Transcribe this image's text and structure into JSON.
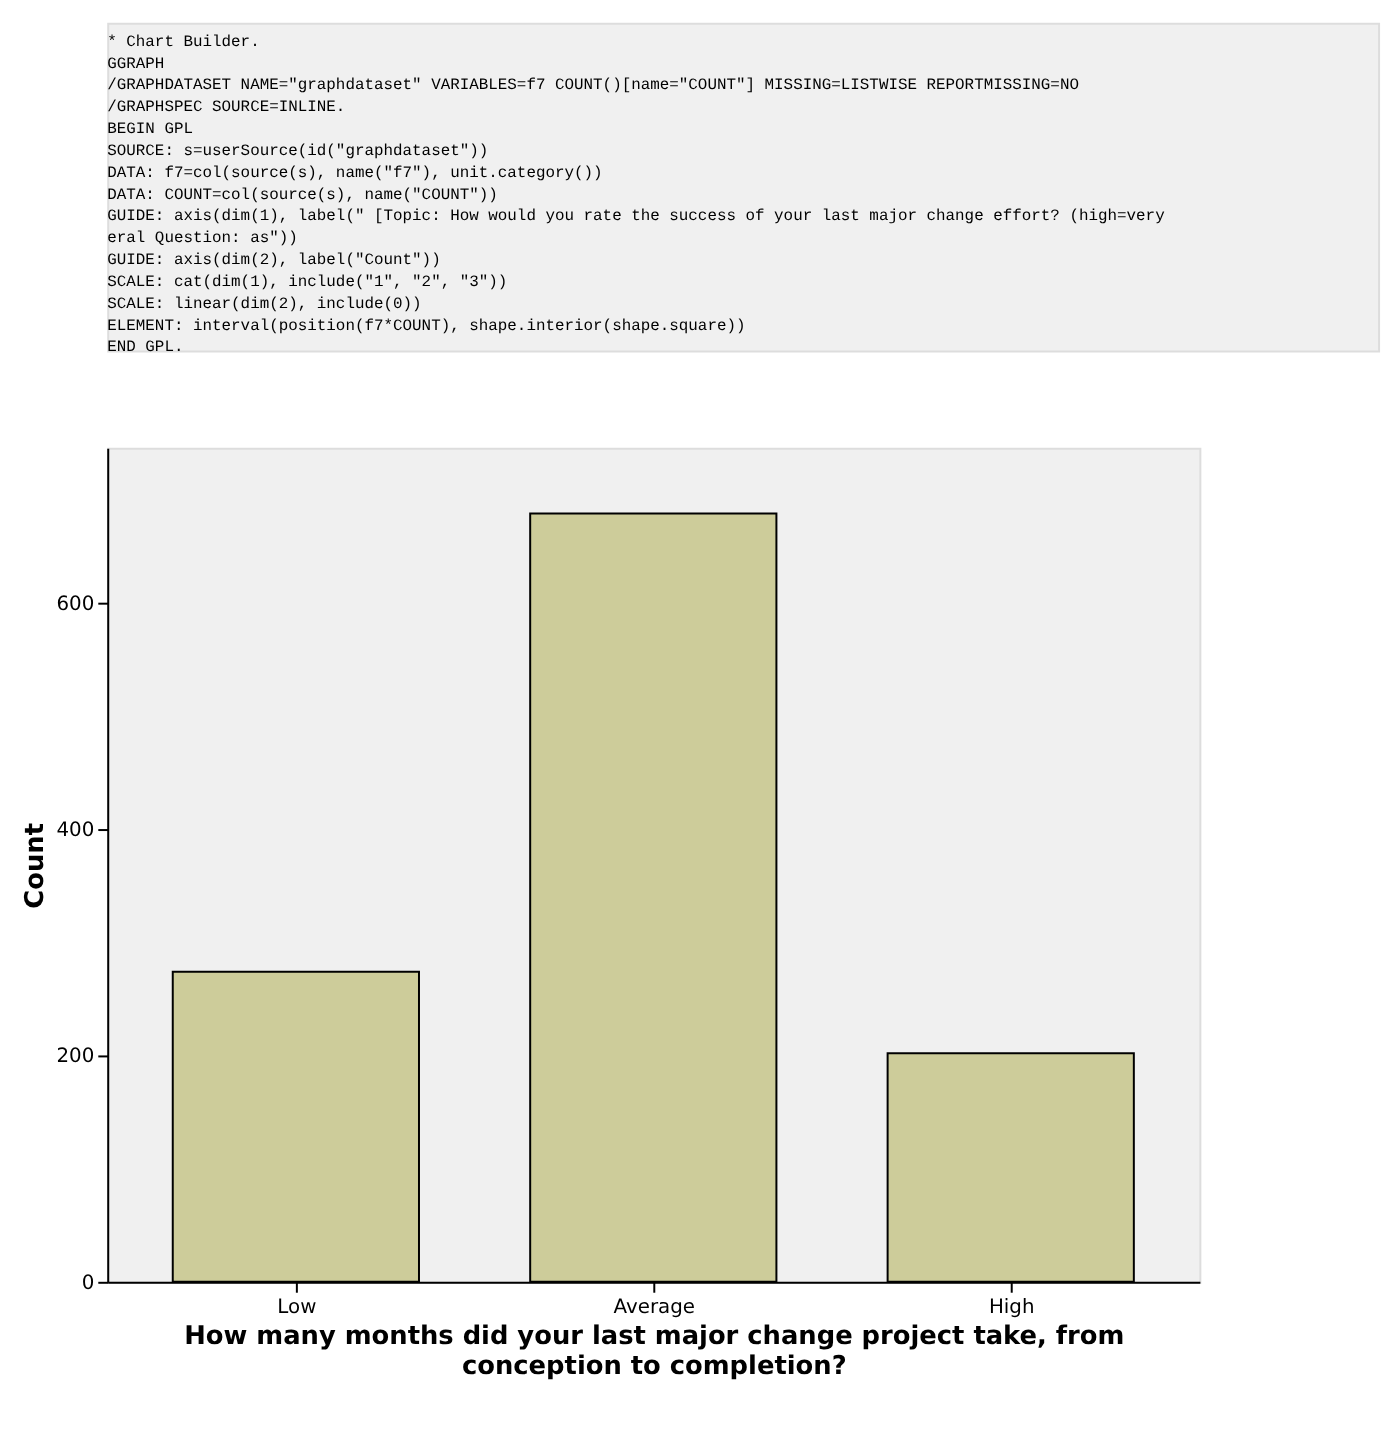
{
  "chart_data": {
    "type": "bar",
    "categories": [
      "Low",
      "Average",
      "High"
    ],
    "values": [
      274,
      679,
      202
    ],
    "color": "#cdcc9a",
    "xlabel": "How many months did your last major change project take, from conception to completion?",
    "ylabel": "Count",
    "ylim": [
      0,
      737
    ],
    "yticks": [
      0,
      200,
      400,
      600
    ],
    "grid": false,
    "annotations": [
      "* Chart Builder.",
      "GGRAPH",
      "  /GRAPHDATASET NAME=\"graphdataset\" VARIABLES=f7 COUNT()[name=\"COUNT\"] MISSING=LISTWISE REPORTMISSING=NO",
      "  /GRAPHSPEC SOURCE=INLINE.",
      "BEGIN GPL",
      "  SOURCE: s=userSource(id(\"graphdataset\"))",
      "  DATA: f7=col(source(s), name(\"f7\"), unit.category())",
      "  DATA: COUNT=col(source(s), name(\"COUNT\"))",
      "  GUIDE: axis(dim(1), label(\" [Topic: How would you rate the success of your last major change effort? (high=very",
      "   eral Question: as\"))",
      "  GUIDE: axis(dim(2), label(\"Count\"))",
      "  SCALE: cat(dim(1), include(\"1\", \"2\", \"3\"))",
      "  SCALE: linear(dim(2), include(0))",
      "  ELEMENT: interval(position(f7*COUNT), shape.interior(shape.square))",
      "END GPL."
    ]
  }
}
